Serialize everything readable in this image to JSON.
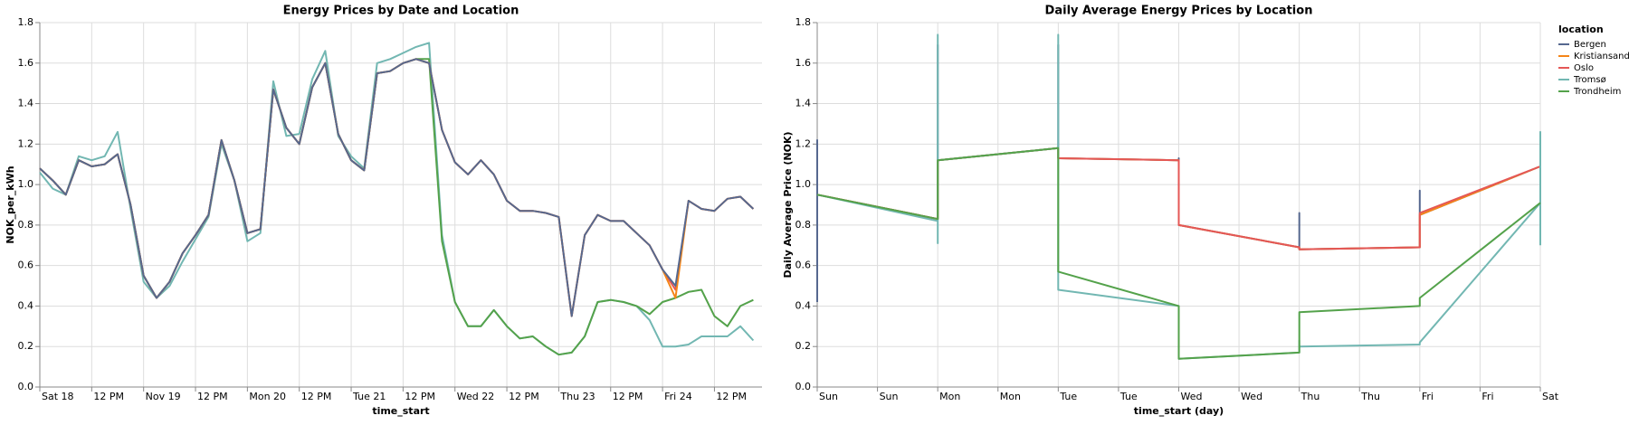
{
  "chart_data": [
    {
      "type": "line",
      "title": "Energy Prices by Date and Location",
      "x_label": "time_start",
      "y_label": "NOK_per_kWh",
      "x": [
        0,
        3,
        6,
        9,
        12,
        15,
        18,
        21,
        24,
        27,
        30,
        33,
        36,
        39,
        42,
        45,
        48,
        51,
        54,
        57,
        60,
        63,
        66,
        69,
        72,
        75,
        78,
        81,
        84,
        87,
        90,
        93,
        96,
        99,
        102,
        105,
        108,
        111,
        114,
        117,
        120,
        123,
        126,
        129,
        132,
        135,
        138,
        141,
        144,
        147,
        150,
        153,
        156,
        159,
        162,
        165
      ],
      "xlim": [
        0,
        167
      ],
      "xticks": [
        {
          "value": 0,
          "label": "Sat 18"
        },
        {
          "value": 12,
          "label": "12 PM"
        },
        {
          "value": 24,
          "label": "Nov 19"
        },
        {
          "value": 36,
          "label": "12 PM"
        },
        {
          "value": 48,
          "label": "Mon 20"
        },
        {
          "value": 60,
          "label": "12 PM"
        },
        {
          "value": 72,
          "label": "Tue 21"
        },
        {
          "value": 84,
          "label": "12 PM"
        },
        {
          "value": 96,
          "label": "Wed 22"
        },
        {
          "value": 108,
          "label": "12 PM"
        },
        {
          "value": 120,
          "label": "Thu 23"
        },
        {
          "value": 132,
          "label": "12 PM"
        },
        {
          "value": 144,
          "label": "Fri 24"
        },
        {
          "value": 156,
          "label": "12 PM"
        }
      ],
      "ylim": [
        0,
        1.8
      ],
      "yticks": [
        {
          "value": 0,
          "label": "0.0"
        },
        {
          "value": 0.2,
          "label": "0.2"
        },
        {
          "value": 0.4,
          "label": "0.4"
        },
        {
          "value": 0.6,
          "label": "0.6"
        },
        {
          "value": 0.8,
          "label": "0.8"
        },
        {
          "value": 1,
          "label": "1.0"
        },
        {
          "value": 1.2,
          "label": "1.2"
        },
        {
          "value": 1.4,
          "label": "1.4"
        },
        {
          "value": 1.6,
          "label": "1.6"
        },
        {
          "value": 1.8,
          "label": "1.8"
        }
      ],
      "grid": true,
      "series": [
        {
          "name": "Tromsø",
          "color": "#72b7b2",
          "values": [
            1.06,
            0.98,
            0.95,
            1.14,
            1.12,
            1.14,
            1.26,
            0.88,
            0.52,
            0.44,
            0.5,
            0.62,
            0.73,
            0.84,
            1.2,
            1.02,
            0.72,
            0.76,
            1.51,
            1.24,
            1.25,
            1.52,
            1.66,
            1.24,
            1.14,
            1.08,
            1.6,
            1.62,
            1.65,
            1.68,
            1.7,
            0.75,
            0.42,
            0.3,
            0.3,
            0.38,
            0.3,
            0.24,
            0.25,
            0.2,
            0.16,
            0.17,
            0.25,
            0.42,
            0.43,
            0.42,
            0.4,
            0.33,
            0.2,
            0.2,
            0.21,
            0.25,
            0.25,
            0.25,
            0.3,
            0.23
          ]
        },
        {
          "name": "Trondheim",
          "color": "#54a24b",
          "values": [
            1.08,
            1.02,
            0.95,
            1.12,
            1.09,
            1.1,
            1.15,
            0.9,
            0.55,
            0.44,
            0.52,
            0.66,
            0.75,
            0.85,
            1.22,
            1.02,
            0.76,
            0.78,
            1.47,
            1.28,
            1.2,
            1.48,
            1.6,
            1.25,
            1.12,
            1.07,
            1.55,
            1.56,
            1.6,
            1.62,
            1.62,
            0.72,
            0.42,
            0.3,
            0.3,
            0.38,
            0.3,
            0.24,
            0.25,
            0.2,
            0.16,
            0.17,
            0.25,
            0.42,
            0.43,
            0.42,
            0.4,
            0.36,
            0.42,
            0.44,
            0.47,
            0.48,
            0.35,
            0.3,
            0.4,
            0.43
          ]
        },
        {
          "name": "Oslo",
          "color": "#e45756",
          "values": [
            1.08,
            1.02,
            0.95,
            1.12,
            1.09,
            1.1,
            1.15,
            0.9,
            0.55,
            0.44,
            0.52,
            0.66,
            0.75,
            0.85,
            1.22,
            1.02,
            0.76,
            0.78,
            1.47,
            1.28,
            1.2,
            1.48,
            1.6,
            1.25,
            1.12,
            1.07,
            1.55,
            1.56,
            1.6,
            1.62,
            1.6,
            1.27,
            1.11,
            1.05,
            1.12,
            1.05,
            0.92,
            0.87,
            0.87,
            0.86,
            0.84,
            0.35,
            0.75,
            0.85,
            0.82,
            0.82,
            0.76,
            0.7,
            0.58,
            0.48,
            0.92,
            0.88,
            0.87,
            0.93,
            0.94,
            0.88
          ]
        },
        {
          "name": "Kristiansand",
          "color": "#f58518",
          "values": [
            1.08,
            1.02,
            0.95,
            1.12,
            1.09,
            1.1,
            1.15,
            0.9,
            0.55,
            0.44,
            0.52,
            0.66,
            0.75,
            0.85,
            1.22,
            1.02,
            0.76,
            0.78,
            1.47,
            1.28,
            1.2,
            1.48,
            1.6,
            1.25,
            1.12,
            1.07,
            1.55,
            1.56,
            1.6,
            1.62,
            1.6,
            1.27,
            1.11,
            1.05,
            1.12,
            1.05,
            0.92,
            0.87,
            0.87,
            0.86,
            0.84,
            0.35,
            0.75,
            0.85,
            0.82,
            0.82,
            0.76,
            0.7,
            0.58,
            0.44,
            0.92,
            0.88,
            0.87,
            0.93,
            0.94,
            0.88
          ]
        },
        {
          "name": "Bergen",
          "color": "#56688f",
          "values": [
            1.08,
            1.02,
            0.95,
            1.12,
            1.09,
            1.1,
            1.15,
            0.9,
            0.55,
            0.44,
            0.52,
            0.66,
            0.75,
            0.85,
            1.22,
            1.02,
            0.76,
            0.78,
            1.47,
            1.28,
            1.2,
            1.48,
            1.6,
            1.25,
            1.12,
            1.07,
            1.55,
            1.56,
            1.6,
            1.62,
            1.6,
            1.27,
            1.11,
            1.05,
            1.12,
            1.05,
            0.92,
            0.87,
            0.87,
            0.86,
            0.84,
            0.35,
            0.75,
            0.85,
            0.82,
            0.82,
            0.76,
            0.7,
            0.58,
            0.5,
            0.92,
            0.88,
            0.87,
            0.93,
            0.94,
            0.88
          ]
        }
      ]
    },
    {
      "type": "line",
      "title": "Daily Average Energy Prices by Location",
      "x_label": "time_start (day)",
      "y_label": "Daily Average Price (NOK)",
      "xlim": [
        0,
        6
      ],
      "xticks": [
        {
          "value": 0,
          "label": "Sun"
        },
        {
          "value": 0.5,
          "label": "Sun"
        },
        {
          "value": 1,
          "label": "Mon"
        },
        {
          "value": 1.5,
          "label": "Mon"
        },
        {
          "value": 2,
          "label": "Tue"
        },
        {
          "value": 2.5,
          "label": "Tue"
        },
        {
          "value": 3,
          "label": "Wed"
        },
        {
          "value": 3.5,
          "label": "Wed"
        },
        {
          "value": 4,
          "label": "Thu"
        },
        {
          "value": 4.5,
          "label": "Thu"
        },
        {
          "value": 5,
          "label": "Fri"
        },
        {
          "value": 5.5,
          "label": "Fri"
        },
        {
          "value": 6,
          "label": "Sat"
        }
      ],
      "ylim": [
        0,
        1.8
      ],
      "yticks": [
        {
          "value": 0,
          "label": "0.0"
        },
        {
          "value": 0.2,
          "label": "0.2"
        },
        {
          "value": 0.4,
          "label": "0.4"
        },
        {
          "value": 0.6,
          "label": "0.6"
        },
        {
          "value": 0.8,
          "label": "0.8"
        },
        {
          "value": 1,
          "label": "1.0"
        },
        {
          "value": 1.2,
          "label": "1.2"
        },
        {
          "value": 1.4,
          "label": "1.4"
        },
        {
          "value": 1.6,
          "label": "1.6"
        },
        {
          "value": 1.8,
          "label": "1.8"
        }
      ],
      "grid": true,
      "legend": "right",
      "legend_title": "location",
      "series": [
        {
          "name": "Bergen",
          "color": "#56688f",
          "x": [
            0,
            0,
            0,
            1,
            1,
            1,
            2,
            2,
            2,
            3,
            3,
            3,
            4,
            4,
            4,
            5,
            5,
            5,
            6,
            6,
            6
          ],
          "values": [
            0.42,
            1.22,
            0.95,
            0.83,
            1.69,
            1.12,
            1.18,
            1.69,
            1.13,
            1.12,
            1.13,
            0.8,
            0.69,
            0.86,
            0.68,
            0.69,
            0.97,
            0.85,
            1.09,
            1.22,
            0.73
          ]
        },
        {
          "name": "Kristiansand",
          "color": "#f58518",
          "x": [
            0,
            1,
            1,
            2,
            2,
            3,
            3,
            4,
            4,
            5,
            5,
            6
          ],
          "values": [
            0.95,
            0.83,
            1.12,
            1.18,
            1.13,
            1.12,
            0.8,
            0.69,
            0.68,
            0.69,
            0.85,
            1.09
          ]
        },
        {
          "name": "Oslo",
          "color": "#e45756",
          "x": [
            0,
            1,
            1,
            2,
            2,
            3,
            3,
            4,
            4,
            5,
            5,
            6
          ],
          "values": [
            0.95,
            0.83,
            1.12,
            1.18,
            1.13,
            1.12,
            0.8,
            0.69,
            0.68,
            0.69,
            0.86,
            1.09
          ]
        },
        {
          "name": "Tromsø",
          "color": "#72b7b2",
          "x": [
            0,
            1,
            1,
            1,
            1,
            2,
            2,
            2,
            3,
            3,
            4,
            4,
            4,
            5,
            5,
            6,
            6,
            6
          ],
          "values": [
            0.95,
            0.82,
            1.74,
            0.71,
            1.12,
            1.18,
            1.74,
            0.48,
            0.4,
            0.14,
            0.17,
            0.23,
            0.2,
            0.21,
            0.22,
            0.91,
            1.26,
            0.7
          ]
        },
        {
          "name": "Trondheim",
          "color": "#54a24b",
          "x": [
            0,
            1,
            1,
            2,
            2,
            3,
            3,
            4,
            4,
            5,
            5,
            6
          ],
          "values": [
            0.95,
            0.83,
            1.12,
            1.18,
            0.57,
            0.4,
            0.14,
            0.17,
            0.37,
            0.4,
            0.44,
            0.91
          ]
        }
      ]
    }
  ]
}
